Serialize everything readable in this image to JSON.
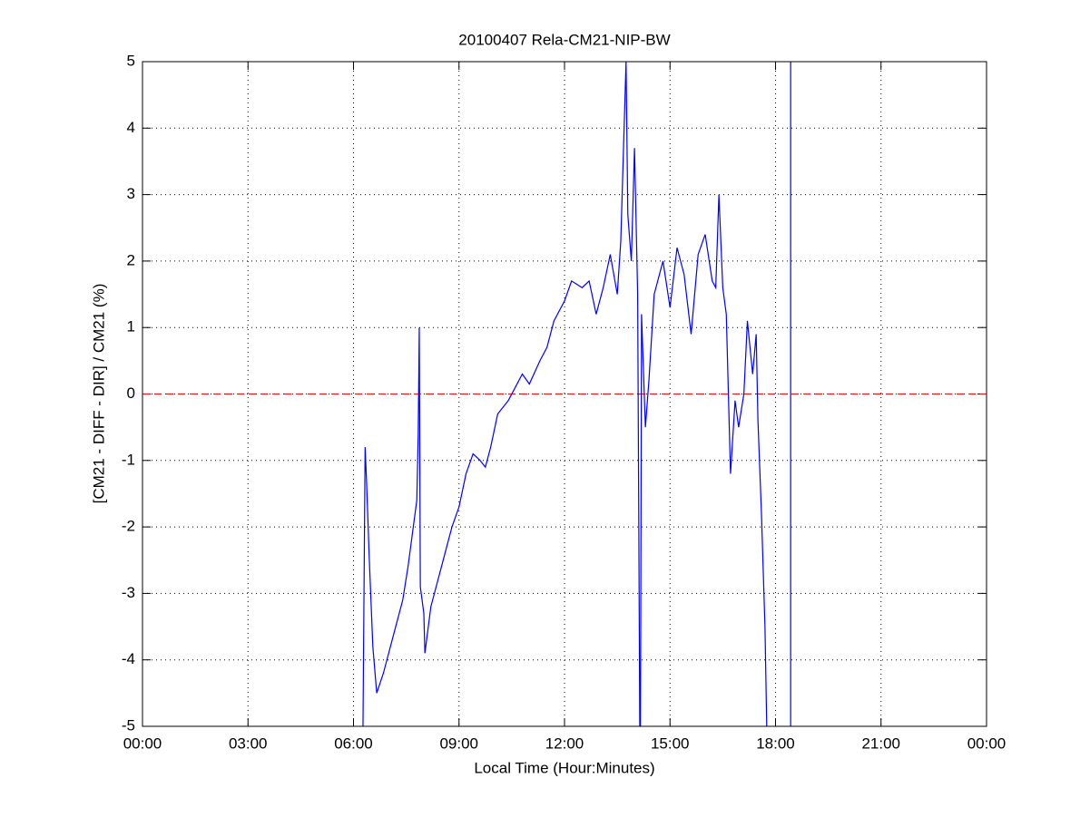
{
  "chart_data": {
    "type": "line",
    "title": "20100407 Rela-CM21-NIP-BW",
    "xlabel": "Local Time (Hour:Minutes)",
    "ylabel": "[CM21 - DIFF - DIR] / CM21 (%)",
    "x": [
      6.27,
      6.33,
      6.37,
      6.45,
      6.55,
      6.66,
      6.85,
      7.0,
      7.2,
      7.4,
      7.55,
      7.7,
      7.8,
      7.84,
      7.87,
      7.9,
      8.0,
      8.03,
      8.2,
      8.5,
      8.8,
      9.0,
      9.2,
      9.4,
      9.6,
      9.75,
      9.9,
      10.1,
      10.4,
      10.6,
      10.8,
      11.0,
      11.3,
      11.5,
      11.7,
      12.0,
      12.2,
      12.5,
      12.7,
      12.9,
      13.1,
      13.3,
      13.5,
      13.6,
      13.75,
      13.8,
      13.9,
      13.99,
      14.08,
      14.14,
      14.16,
      14.19,
      14.3,
      14.4,
      14.55,
      14.8,
      15.0,
      15.2,
      15.4,
      15.6,
      15.8,
      16.0,
      16.2,
      16.3,
      16.39,
      16.5,
      16.6,
      16.72,
      16.85,
      16.95,
      17.1,
      17.2,
      17.35,
      17.45,
      17.5,
      17.6,
      17.7,
      17.75,
      18.0,
      18.43,
      18.43
    ],
    "series": [
      {
        "name": "Rela-CM21-NIP-BW",
        "color": "#0000ff",
        "values": [
          -5,
          -0.8,
          -1.3,
          -2.5,
          -3.8,
          -4.5,
          -4.2,
          -3.9,
          -3.5,
          -3.1,
          -2.6,
          -2.0,
          -1.6,
          -0.6,
          1.0,
          -2.9,
          -3.3,
          -3.9,
          -3.2,
          -2.6,
          -2.0,
          -1.7,
          -1.2,
          -0.9,
          -1.0,
          -1.1,
          -0.8,
          -0.3,
          -0.1,
          0.1,
          0.3,
          0.15,
          0.5,
          0.7,
          1.1,
          1.4,
          1.7,
          1.6,
          1.7,
          1.2,
          1.6,
          2.1,
          1.5,
          2.3,
          5,
          2.7,
          2.0,
          3.7,
          1.5,
          -5,
          -5,
          1.2,
          -0.5,
          0.2,
          1.5,
          2.0,
          1.3,
          2.2,
          1.8,
          0.9,
          2.1,
          2.4,
          1.7,
          1.6,
          3.0,
          1.6,
          1.2,
          -1.2,
          -0.1,
          -0.5,
          0.0,
          1.1,
          0.3,
          0.9,
          -0.4,
          -1.8,
          -3.5,
          -5,
          null,
          -5,
          5
        ]
      }
    ],
    "hline": {
      "value": 0,
      "color": "#ff0000"
    },
    "xlim": [
      0,
      24
    ],
    "xticks": [
      {
        "value": 0,
        "label": "00:00"
      },
      {
        "value": 3,
        "label": "03:00"
      },
      {
        "value": 6,
        "label": "06:00"
      },
      {
        "value": 9,
        "label": "09:00"
      },
      {
        "value": 12,
        "label": "12:00"
      },
      {
        "value": 15,
        "label": "15:00"
      },
      {
        "value": 18,
        "label": "18:00"
      },
      {
        "value": 21,
        "label": "21:00"
      },
      {
        "value": 24,
        "label": "00:00"
      }
    ],
    "ylim": [
      -5,
      5
    ],
    "yticks": [
      -5,
      -4,
      -3,
      -2,
      -1,
      0,
      1,
      2,
      3,
      4,
      5
    ],
    "grid": true
  }
}
